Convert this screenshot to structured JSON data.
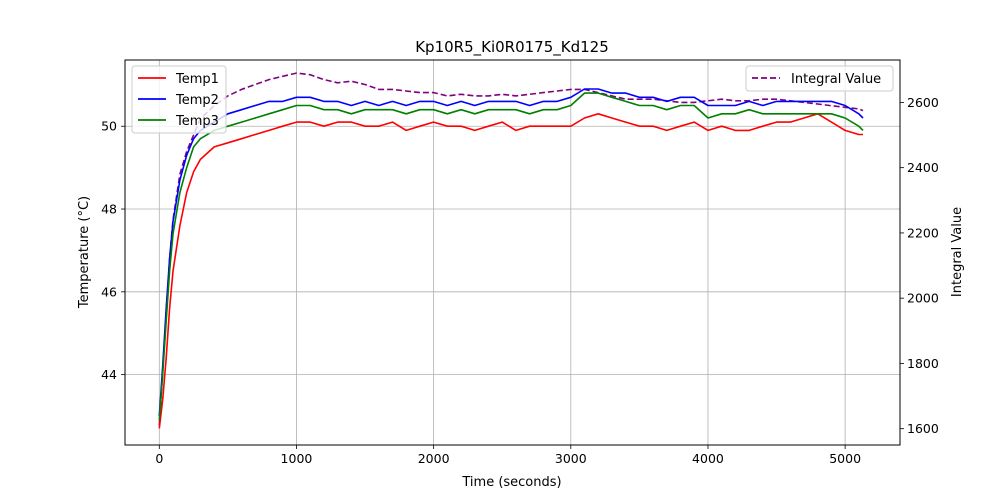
{
  "chart_data": {
    "type": "line",
    "title": "Kp10R5_Ki0R0175_Kd125",
    "xlabel": "Time (seconds)",
    "ylabel": "Temperature (°C)",
    "y2label": "Integral Value",
    "xlim": [
      -250,
      5400
    ],
    "ylim": [
      42.3,
      51.6
    ],
    "y2lim": [
      1550,
      2730
    ],
    "grid": true,
    "x_ticks": [
      0,
      1000,
      2000,
      3000,
      4000,
      5000
    ],
    "y_ticks": [
      44,
      46,
      48,
      50
    ],
    "y2_ticks": [
      1600,
      1800,
      2000,
      2200,
      2400,
      2600
    ],
    "legend_left": {
      "placement": "upper-left",
      "entries": [
        "Temp1",
        "Temp2",
        "Temp3"
      ]
    },
    "legend_right": {
      "placement": "upper-right",
      "entries": [
        "Integral Value"
      ]
    },
    "x": [
      0,
      25,
      50,
      75,
      100,
      150,
      200,
      250,
      300,
      400,
      500,
      600,
      700,
      800,
      900,
      1000,
      1100,
      1200,
      1300,
      1400,
      1500,
      1600,
      1700,
      1800,
      1900,
      2000,
      2100,
      2200,
      2300,
      2400,
      2500,
      2600,
      2700,
      2800,
      2900,
      3000,
      3100,
      3200,
      3300,
      3400,
      3500,
      3600,
      3700,
      3800,
      3900,
      4000,
      4100,
      4200,
      4300,
      4400,
      4500,
      4600,
      4700,
      4800,
      4900,
      5000,
      5100,
      5130
    ],
    "series": [
      {
        "name": "Temp1",
        "color": "#ff0000",
        "axis": "left",
        "style": "solid",
        "values": [
          42.7,
          43.4,
          44.4,
          45.6,
          46.5,
          47.6,
          48.4,
          48.9,
          49.2,
          49.5,
          49.6,
          49.7,
          49.8,
          49.9,
          50.0,
          50.1,
          50.1,
          50.0,
          50.1,
          50.1,
          50.0,
          50.0,
          50.1,
          49.9,
          50.0,
          50.1,
          50.0,
          50.0,
          49.9,
          50.0,
          50.1,
          49.9,
          50.0,
          50.0,
          50.0,
          50.0,
          50.2,
          50.3,
          50.2,
          50.1,
          50.0,
          50.0,
          49.9,
          50.0,
          50.1,
          49.9,
          50.0,
          49.9,
          49.9,
          50.0,
          50.1,
          50.1,
          50.2,
          50.3,
          50.1,
          49.9,
          49.8,
          49.8
        ]
      },
      {
        "name": "Temp2",
        "color": "#0000ff",
        "axis": "left",
        "style": "solid",
        "values": [
          43.0,
          44.2,
          45.6,
          46.8,
          47.7,
          48.7,
          49.3,
          49.7,
          49.9,
          50.1,
          50.3,
          50.4,
          50.5,
          50.6,
          50.6,
          50.7,
          50.7,
          50.6,
          50.6,
          50.5,
          50.6,
          50.5,
          50.6,
          50.5,
          50.6,
          50.6,
          50.5,
          50.6,
          50.5,
          50.6,
          50.6,
          50.6,
          50.5,
          50.6,
          50.6,
          50.7,
          50.9,
          50.9,
          50.8,
          50.8,
          50.7,
          50.7,
          50.6,
          50.7,
          50.7,
          50.5,
          50.5,
          50.5,
          50.6,
          50.5,
          50.6,
          50.6,
          50.6,
          50.6,
          50.6,
          50.5,
          50.3,
          50.2
        ]
      },
      {
        "name": "Temp3",
        "color": "#008000",
        "axis": "left",
        "style": "solid",
        "values": [
          42.9,
          44.0,
          45.3,
          46.5,
          47.4,
          48.4,
          49.0,
          49.5,
          49.7,
          49.9,
          50.0,
          50.1,
          50.2,
          50.3,
          50.4,
          50.5,
          50.5,
          50.4,
          50.4,
          50.3,
          50.4,
          50.4,
          50.4,
          50.3,
          50.4,
          50.4,
          50.3,
          50.4,
          50.3,
          50.4,
          50.4,
          50.4,
          50.3,
          50.4,
          50.4,
          50.5,
          50.8,
          50.8,
          50.7,
          50.6,
          50.5,
          50.5,
          50.4,
          50.5,
          50.5,
          50.2,
          50.3,
          50.3,
          50.4,
          50.3,
          50.3,
          50.3,
          50.3,
          50.3,
          50.3,
          50.2,
          50.0,
          49.9
        ]
      },
      {
        "name": "Integral Value",
        "color": "#800080",
        "axis": "right",
        "style": "dashed",
        "values": [
          1610,
          1780,
          1960,
          2120,
          2240,
          2380,
          2450,
          2500,
          2550,
          2590,
          2620,
          2640,
          2655,
          2670,
          2680,
          2690,
          2685,
          2670,
          2660,
          2665,
          2655,
          2640,
          2640,
          2635,
          2630,
          2630,
          2620,
          2625,
          2620,
          2620,
          2625,
          2620,
          2625,
          2630,
          2635,
          2640,
          2640,
          2630,
          2620,
          2610,
          2610,
          2610,
          2605,
          2600,
          2600,
          2605,
          2610,
          2605,
          2605,
          2610,
          2610,
          2605,
          2600,
          2595,
          2590,
          2585,
          2580,
          2575
        ]
      }
    ]
  }
}
